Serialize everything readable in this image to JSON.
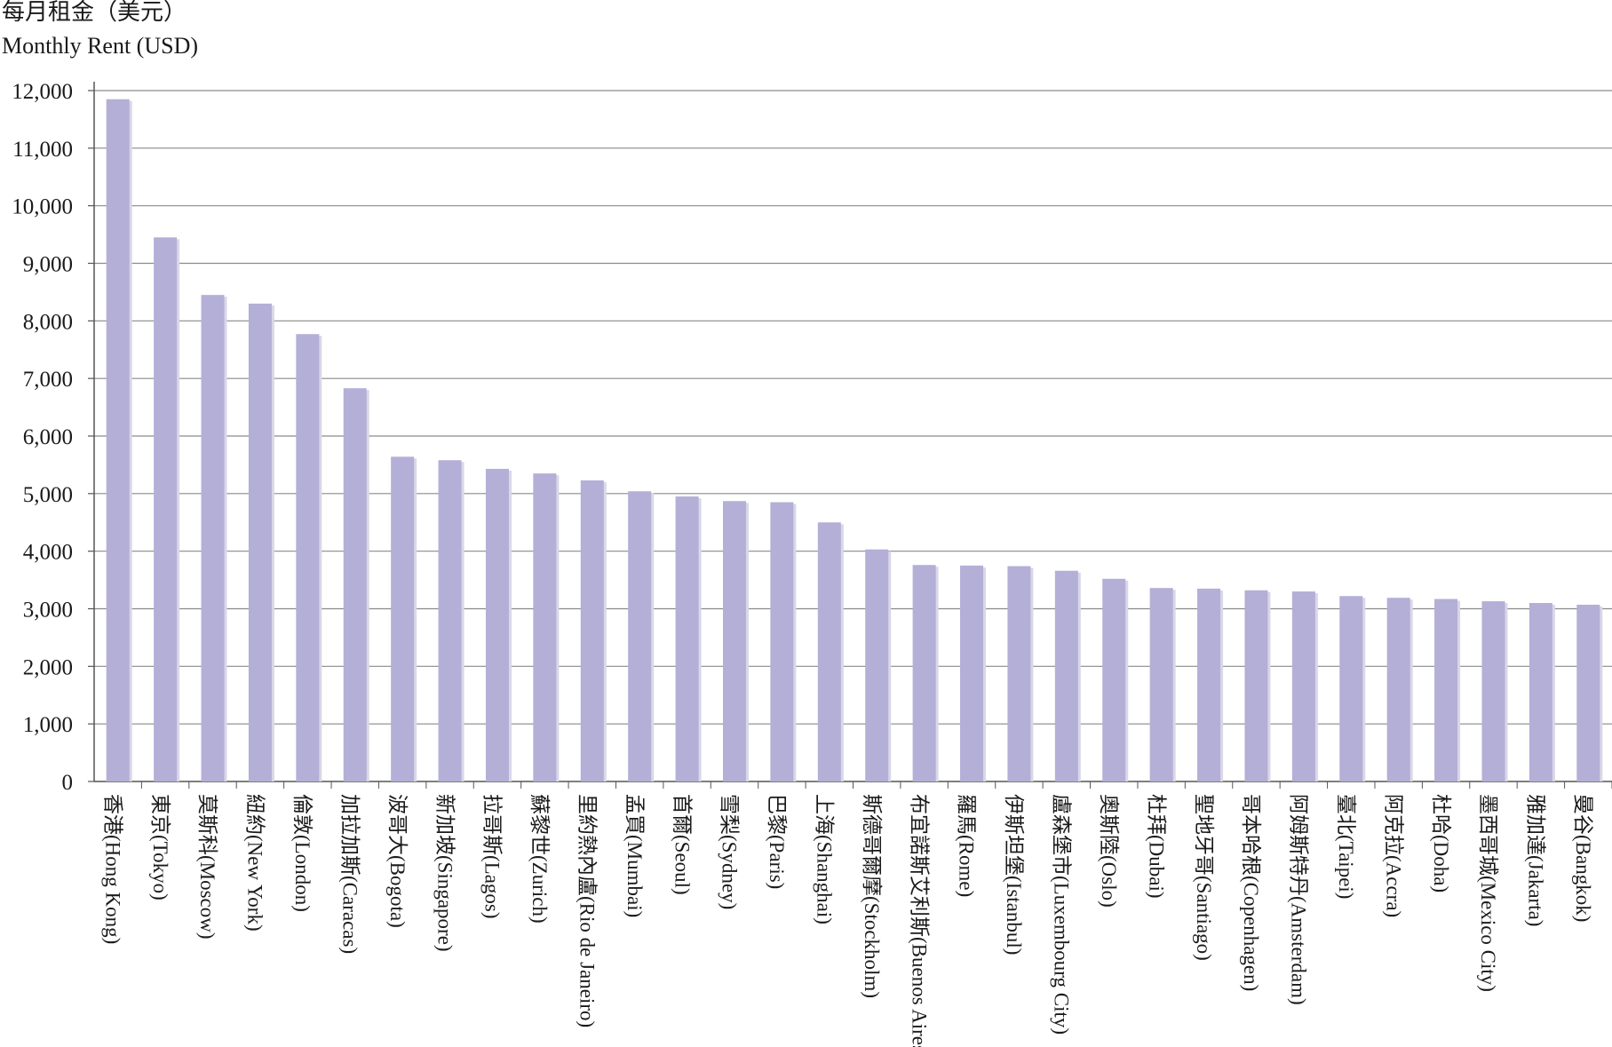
{
  "chart_data": {
    "type": "bar",
    "ylabel_zh": "每月租金（美元）",
    "ylabel_en": "Monthly Rent (USD)",
    "ylim": [
      0,
      12000
    ],
    "yticks": [
      0,
      1000,
      2000,
      3000,
      4000,
      5000,
      6000,
      7000,
      8000,
      9000,
      10000,
      11000,
      12000
    ],
    "ytick_labels": [
      "0",
      "1,000",
      "2,000",
      "3,000",
      "4,000",
      "5,000",
      "6,000",
      "7,000",
      "8,000",
      "9,000",
      "10,000",
      "11,000",
      "12,000"
    ],
    "grid": true,
    "bar_color": "#b3afd6",
    "categories": [
      "香港(Hong Kong)",
      "東京(Tokyo)",
      "莫斯科(Moscow)",
      "紐約(New York)",
      "倫敦(London)",
      "加拉加斯(Caracas)",
      "波哥大(Bogota)",
      "新加坡(Singapore)",
      "拉哥斯(Lagos)",
      "蘇黎世(Zurich)",
      "里約熱內盧(Rio de Janeiro)",
      "孟買(Mumbai)",
      "首爾(Seoul)",
      "雪梨(Sydney)",
      "巴黎(Paris)",
      "上海(Shanghai)",
      "斯德哥爾摩(Stockholm)",
      "布宜諾斯艾利斯(Buenos Aires)",
      "羅馬(Rome)",
      "伊斯坦堡(Istanbul)",
      "盧森堡市(Luxembourg City)",
      "奧斯陸(Oslo)",
      "杜拜(Dubai)",
      "聖地牙哥(Santiago)",
      "哥本哈根(Copenhagen)",
      "阿姆斯特丹(Amsterdam)",
      "臺北(Taipei)",
      "阿克拉(Accra)",
      "杜哈(Doha)",
      "墨西哥城(Mexico City)",
      "雅加達(Jakarta)",
      "曼谷(Bangkok)"
    ],
    "values": [
      11850,
      9450,
      8450,
      8300,
      7770,
      6830,
      5640,
      5580,
      5430,
      5350,
      5230,
      5040,
      4950,
      4870,
      4850,
      4500,
      4030,
      3760,
      3750,
      3740,
      3660,
      3520,
      3360,
      3350,
      3320,
      3300,
      3220,
      3190,
      3170,
      3130,
      3100,
      3070
    ]
  }
}
